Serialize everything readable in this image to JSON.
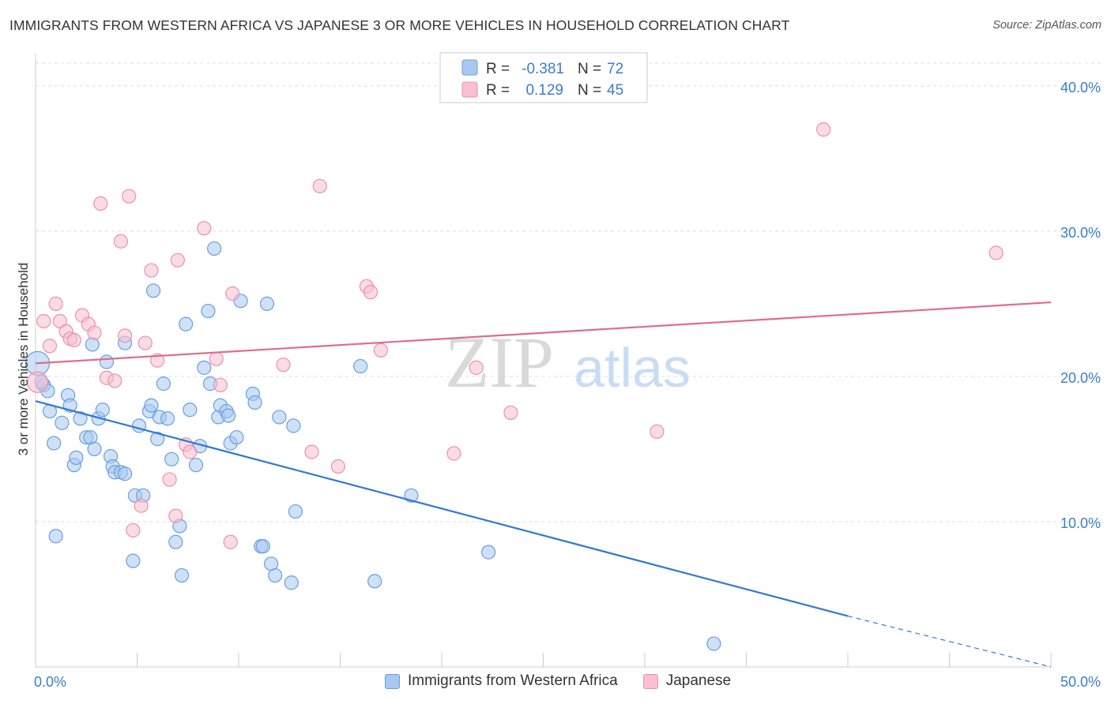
{
  "title": "IMMIGRANTS FROM WESTERN AFRICA VS JAPANESE 3 OR MORE VEHICLES IN HOUSEHOLD CORRELATION CHART",
  "source": "Source: ZipAtlas.com",
  "watermark": {
    "zip": "ZIP",
    "atlas": "atlas"
  },
  "colors": {
    "blue_fill": "#a8c8f0",
    "blue_stroke": "#6a9ee0",
    "blue_line": "#2f78d6",
    "pink_fill": "#f8c0d0",
    "pink_stroke": "#ec90aa",
    "pink_line": "#e06a94",
    "axis_text": "#3d7ccc",
    "grid": "#dddddd"
  },
  "legend_box": {
    "r_label": "R =",
    "n_label": "N =",
    "rows": [
      {
        "r": "-0.381",
        "n": "72"
      },
      {
        "r": "0.129",
        "n": "45"
      }
    ]
  },
  "chart_data": {
    "type": "scatter",
    "title": "IMMIGRANTS FROM WESTERN AFRICA VS JAPANESE 3 OR MORE VEHICLES IN HOUSEHOLD CORRELATION CHART",
    "xlabel": "",
    "ylabel": "3 or more Vehicles in Household",
    "xlim": [
      0,
      50
    ],
    "ylim": [
      0,
      42
    ],
    "x_tick_labels": [
      "0.0%",
      "50.0%"
    ],
    "y_ticks": [
      10,
      20,
      30,
      40
    ],
    "y_tick_labels": [
      "10.0%",
      "20.0%",
      "30.0%",
      "40.0%"
    ],
    "grid": true,
    "legend": "bottom",
    "series": [
      {
        "name": "Immigrants from Western Africa",
        "color": "blue",
        "r": -0.381,
        "n": 72,
        "trend": {
          "x0": 0,
          "y0": 18.3,
          "x1": 40,
          "y1": 3.5,
          "dashed_to_x": 50,
          "dashed_to_y": 0
        },
        "points": [
          [
            0.1,
            20.9
          ],
          [
            0.4,
            19.4
          ],
          [
            0.6,
            19.0
          ],
          [
            0.7,
            17.6
          ],
          [
            0.9,
            15.4
          ],
          [
            1.0,
            9.0
          ],
          [
            1.3,
            16.8
          ],
          [
            1.6,
            18.7
          ],
          [
            1.7,
            18.0
          ],
          [
            1.9,
            13.9
          ],
          [
            2.0,
            14.4
          ],
          [
            2.2,
            17.1
          ],
          [
            2.5,
            15.8
          ],
          [
            2.7,
            15.8
          ],
          [
            2.8,
            22.2
          ],
          [
            2.9,
            15.0
          ],
          [
            3.1,
            17.1
          ],
          [
            3.3,
            17.7
          ],
          [
            3.5,
            21.0
          ],
          [
            3.7,
            14.5
          ],
          [
            3.8,
            13.8
          ],
          [
            3.9,
            13.4
          ],
          [
            4.2,
            13.4
          ],
          [
            4.4,
            13.3
          ],
          [
            4.4,
            22.3
          ],
          [
            4.8,
            7.3
          ],
          [
            4.9,
            11.8
          ],
          [
            5.1,
            16.6
          ],
          [
            5.3,
            11.8
          ],
          [
            5.6,
            17.6
          ],
          [
            5.7,
            18.0
          ],
          [
            5.8,
            25.9
          ],
          [
            6.0,
            15.7
          ],
          [
            6.1,
            17.2
          ],
          [
            6.3,
            19.5
          ],
          [
            6.5,
            17.1
          ],
          [
            6.7,
            14.3
          ],
          [
            6.9,
            8.6
          ],
          [
            7.1,
            9.7
          ],
          [
            7.2,
            6.3
          ],
          [
            7.4,
            23.6
          ],
          [
            7.6,
            17.7
          ],
          [
            7.9,
            13.9
          ],
          [
            8.1,
            15.2
          ],
          [
            8.3,
            20.6
          ],
          [
            8.5,
            24.5
          ],
          [
            8.6,
            19.5
          ],
          [
            8.8,
            28.8
          ],
          [
            9.0,
            17.2
          ],
          [
            9.1,
            18.0
          ],
          [
            9.4,
            17.6
          ],
          [
            9.5,
            17.3
          ],
          [
            9.6,
            15.4
          ],
          [
            9.9,
            15.8
          ],
          [
            10.1,
            25.2
          ],
          [
            10.7,
            18.8
          ],
          [
            10.8,
            18.2
          ],
          [
            11.1,
            8.3
          ],
          [
            11.2,
            8.3
          ],
          [
            11.4,
            25.0
          ],
          [
            11.6,
            7.1
          ],
          [
            11.8,
            6.3
          ],
          [
            12.0,
            17.2
          ],
          [
            12.6,
            5.8
          ],
          [
            12.7,
            16.6
          ],
          [
            12.8,
            10.7
          ],
          [
            16.0,
            20.7
          ],
          [
            16.7,
            5.9
          ],
          [
            18.5,
            11.8
          ],
          [
            22.3,
            7.9
          ],
          [
            33.4,
            1.6
          ],
          [
            0.3,
            19.6
          ]
        ]
      },
      {
        "name": "Japanese",
        "color": "pink",
        "r": 0.129,
        "n": 45,
        "trend": {
          "x0": 0,
          "y0": 20.9,
          "x1": 50,
          "y1": 25.1
        },
        "points": [
          [
            0.1,
            19.6
          ],
          [
            0.4,
            23.8
          ],
          [
            0.7,
            22.1
          ],
          [
            1.0,
            25.0
          ],
          [
            1.2,
            23.8
          ],
          [
            1.5,
            23.1
          ],
          [
            1.7,
            22.6
          ],
          [
            1.9,
            22.5
          ],
          [
            2.3,
            24.2
          ],
          [
            2.6,
            23.6
          ],
          [
            2.9,
            23.0
          ],
          [
            3.2,
            31.9
          ],
          [
            3.5,
            19.9
          ],
          [
            3.9,
            19.7
          ],
          [
            4.2,
            29.3
          ],
          [
            4.4,
            22.8
          ],
          [
            4.6,
            32.4
          ],
          [
            4.8,
            9.4
          ],
          [
            5.2,
            11.1
          ],
          [
            5.4,
            22.3
          ],
          [
            5.7,
            27.3
          ],
          [
            6.0,
            21.1
          ],
          [
            6.6,
            12.9
          ],
          [
            6.9,
            10.4
          ],
          [
            7.0,
            28.0
          ],
          [
            7.4,
            15.3
          ],
          [
            7.6,
            14.8
          ],
          [
            8.3,
            30.2
          ],
          [
            8.9,
            21.2
          ],
          [
            9.1,
            19.4
          ],
          [
            9.6,
            8.6
          ],
          [
            9.7,
            25.7
          ],
          [
            12.2,
            20.8
          ],
          [
            13.6,
            14.8
          ],
          [
            14.0,
            33.1
          ],
          [
            14.9,
            13.8
          ],
          [
            16.3,
            26.2
          ],
          [
            16.5,
            25.8
          ],
          [
            17.0,
            21.8
          ],
          [
            20.6,
            14.7
          ],
          [
            21.7,
            20.6
          ],
          [
            23.4,
            17.5
          ],
          [
            30.6,
            16.2
          ],
          [
            38.8,
            37.0
          ],
          [
            47.3,
            28.5
          ]
        ]
      }
    ]
  },
  "bottom_legend": [
    {
      "label": "Immigrants from Western Africa",
      "color": "blue"
    },
    {
      "label": "Japanese",
      "color": "pink"
    }
  ]
}
